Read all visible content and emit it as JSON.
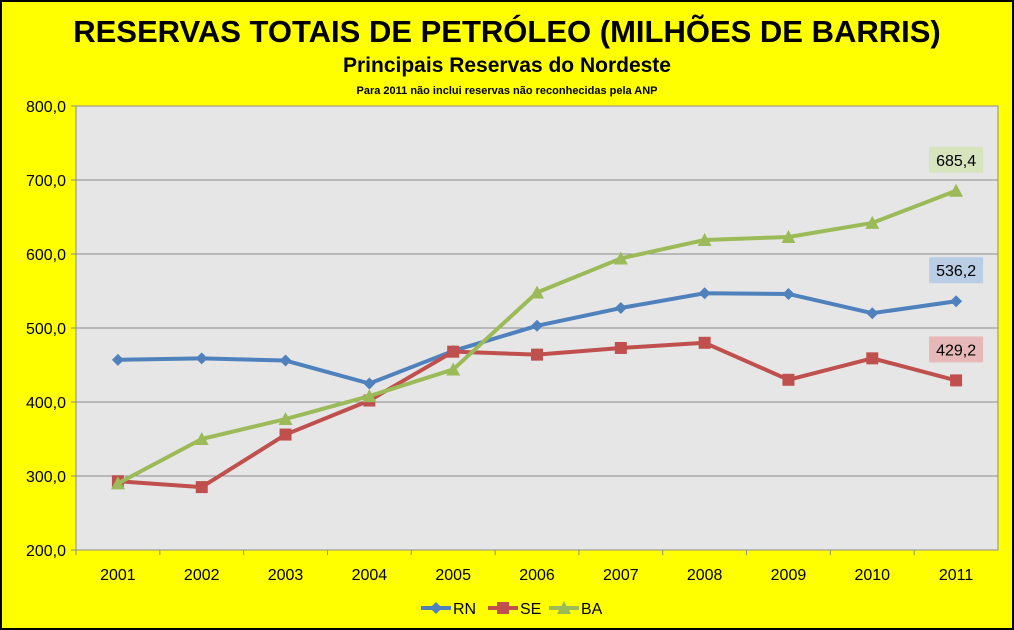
{
  "chart_data": {
    "type": "line",
    "title": "RESERVAS TOTAIS DE PETRÓLEO (MILHÕES DE BARRIS)",
    "subtitle": "Principais Reservas do Nordeste",
    "note": "Para 2011 não inclui reservas não reconhecidas pela ANP",
    "categories": [
      "2001",
      "2002",
      "2003",
      "2004",
      "2005",
      "2006",
      "2007",
      "2008",
      "2009",
      "2010",
      "2011"
    ],
    "ylim": [
      200,
      800
    ],
    "yticks": [
      "200,0",
      "300,0",
      "400,0",
      "500,0",
      "600,0",
      "700,0",
      "800,0"
    ],
    "grid": true,
    "legend_position": "bottom",
    "series": [
      {
        "name": "RN",
        "color": "#4f81bd",
        "marker": "diamond",
        "values": [
          457,
          459,
          456,
          425,
          469,
          503,
          527,
          547,
          546,
          520,
          536.2
        ],
        "end_label": "536,2",
        "label_bg": "#b9cde5"
      },
      {
        "name": "SE",
        "color": "#c0504d",
        "marker": "square",
        "values": [
          293,
          285,
          356,
          402,
          468,
          464,
          473,
          480,
          430,
          459,
          429.2
        ],
        "end_label": "429,2",
        "label_bg": "#e6b9b8"
      },
      {
        "name": "BA",
        "color": "#9bbb59",
        "marker": "triangle",
        "values": [
          290,
          350,
          377,
          408,
          444,
          548,
          594,
          619,
          623,
          642,
          685.4
        ],
        "end_label": "685,4",
        "label_bg": "#d7e4bd"
      }
    ]
  }
}
